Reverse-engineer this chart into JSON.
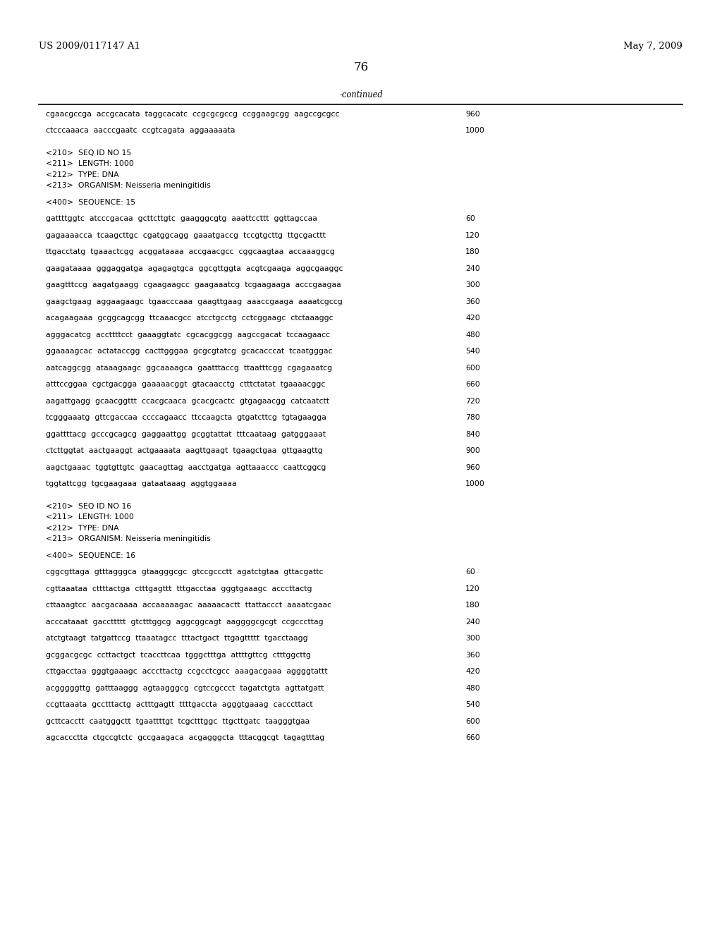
{
  "header_left": "US 2009/0117147 A1",
  "header_right": "May 7, 2009",
  "page_number": "76",
  "continued_label": "-continued",
  "background_color": "#ffffff",
  "text_color": "#000000",
  "font_size_header": 9.5,
  "font_size_body": 7.8,
  "font_size_page": 12,
  "lines": [
    {
      "text": "cgaacgccga  accgcacata  taggcacatc  ccgcgcgccg  ccggaagcgg  aagccgcgcc",
      "number": "960",
      "type": "seq"
    },
    {
      "text": "",
      "number": "",
      "type": "blank"
    },
    {
      "text": "ctcccaaaca  aacccgaatc  ccgtcagata  aggaaaaata",
      "number": "1000",
      "type": "seq"
    },
    {
      "text": "",
      "number": "",
      "type": "blank"
    },
    {
      "text": "",
      "number": "",
      "type": "blank"
    },
    {
      "text": "<210>  SEQ ID NO 15",
      "number": "",
      "type": "meta"
    },
    {
      "text": "<211>  LENGTH: 1000",
      "number": "",
      "type": "meta"
    },
    {
      "text": "<212>  TYPE: DNA",
      "number": "",
      "type": "meta"
    },
    {
      "text": "<213>  ORGANISM: Neisseria meningitidis",
      "number": "",
      "type": "meta"
    },
    {
      "text": "",
      "number": "",
      "type": "blank"
    },
    {
      "text": "<400>  SEQUENCE: 15",
      "number": "",
      "type": "meta"
    },
    {
      "text": "",
      "number": "",
      "type": "blank"
    },
    {
      "text": "gattttggtc  atcccgacaa  gcttcttgtc  gaagggcgtg  aaattccttt  ggttagccaa",
      "number": "60",
      "type": "seq"
    },
    {
      "text": "",
      "number": "",
      "type": "blank"
    },
    {
      "text": "gagaaaacca  tcaagcttgc  cgatggcagg  gaaatgaccg  tccgtgcttg  ttgcgacttt",
      "number": "120",
      "type": "seq"
    },
    {
      "text": "",
      "number": "",
      "type": "blank"
    },
    {
      "text": "ttgacctatg  tgaaactcgg  acggataaaa  accgaacgcc  cggcaagtaa  accaaaggcg",
      "number": "180",
      "type": "seq"
    },
    {
      "text": "",
      "number": "",
      "type": "blank"
    },
    {
      "text": "gaagataaaa  gggaggatga  agagagtgca  ggcgttggta  acgtcgaaga  aggcgaaggc",
      "number": "240",
      "type": "seq"
    },
    {
      "text": "",
      "number": "",
      "type": "blank"
    },
    {
      "text": "gaagtttccg  aagatgaagg  cgaagaagcc  gaagaaatcg  tcgaagaaga  acccgaagaa",
      "number": "300",
      "type": "seq"
    },
    {
      "text": "",
      "number": "",
      "type": "blank"
    },
    {
      "text": "gaagctgaag  aggaagaagc  tgaacccaaa  gaagttgaag  aaaccgaaga  aaaatcgccg",
      "number": "360",
      "type": "seq"
    },
    {
      "text": "",
      "number": "",
      "type": "blank"
    },
    {
      "text": "acagaagaaa  gcggcagcgg  ttcaaacgcc  atcctgcctg  cctcggaagc  ctctaaaggc",
      "number": "420",
      "type": "seq"
    },
    {
      "text": "",
      "number": "",
      "type": "blank"
    },
    {
      "text": "agggacatcg  accttttcct  gaaaggtatc  cgcacggcgg  aagccgacat  tccaagaacc",
      "number": "480",
      "type": "seq"
    },
    {
      "text": "",
      "number": "",
      "type": "blank"
    },
    {
      "text": "ggaaaagcac  actataccgg  cacttgggaa  gcgcgtatcg  gcacacccat  tcaatgggac",
      "number": "540",
      "type": "seq"
    },
    {
      "text": "",
      "number": "",
      "type": "blank"
    },
    {
      "text": "aatcaggcgg  ataaagaagc  ggcaaaagca  gaatttaccg  ttaatttcgg  cgagaaatcg",
      "number": "600",
      "type": "seq"
    },
    {
      "text": "",
      "number": "",
      "type": "blank"
    },
    {
      "text": "atttccggaa  cgctgacgga  gaaaaacggt  gtacaacctg  ctttctatat  tgaaaacggc",
      "number": "660",
      "type": "seq"
    },
    {
      "text": "",
      "number": "",
      "type": "blank"
    },
    {
      "text": "aagattgagg  gcaacggttt  ccacgcaaca  gcacgcactc  gtgagaacgg  catcaatctt",
      "number": "720",
      "type": "seq"
    },
    {
      "text": "",
      "number": "",
      "type": "blank"
    },
    {
      "text": "tcgggaaatg  gttcgaccaa  ccccagaacc  ttccaagcta  gtgatcttcg  tgtagaagga",
      "number": "780",
      "type": "seq"
    },
    {
      "text": "",
      "number": "",
      "type": "blank"
    },
    {
      "text": "ggattttacg  gcccgcagcg  gaggaattgg  gcggtattat  tttcaataag  gatgggaaat",
      "number": "840",
      "type": "seq"
    },
    {
      "text": "",
      "number": "",
      "type": "blank"
    },
    {
      "text": "ctcttggtat  aactgaaggt  actgaaaata  aagttgaagt  tgaagctgaa  gttgaagttg",
      "number": "900",
      "type": "seq"
    },
    {
      "text": "",
      "number": "",
      "type": "blank"
    },
    {
      "text": "aagctgaaac  tggtgttgtc  gaacagttag  aacctgatga  agttaaaccc  caattcggcg",
      "number": "960",
      "type": "seq"
    },
    {
      "text": "",
      "number": "",
      "type": "blank"
    },
    {
      "text": "tggtattcgg  tgcgaagaaa  gataataaag  aggtggaaaa",
      "number": "1000",
      "type": "seq"
    },
    {
      "text": "",
      "number": "",
      "type": "blank"
    },
    {
      "text": "",
      "number": "",
      "type": "blank"
    },
    {
      "text": "<210>  SEQ ID NO 16",
      "number": "",
      "type": "meta"
    },
    {
      "text": "<211>  LENGTH: 1000",
      "number": "",
      "type": "meta"
    },
    {
      "text": "<212>  TYPE: DNA",
      "number": "",
      "type": "meta"
    },
    {
      "text": "<213>  ORGANISM: Neisseria meningitidis",
      "number": "",
      "type": "meta"
    },
    {
      "text": "",
      "number": "",
      "type": "blank"
    },
    {
      "text": "<400>  SEQUENCE: 16",
      "number": "",
      "type": "meta"
    },
    {
      "text": "",
      "number": "",
      "type": "blank"
    },
    {
      "text": "cggcgttaga  gtttagggca  gtaagggcgc  gtccgccctt  agatctgtaa  gttacgattc",
      "number": "60",
      "type": "seq"
    },
    {
      "text": "",
      "number": "",
      "type": "blank"
    },
    {
      "text": "cgttaaataa  cttttactga  ctttgagttt  tttgacctaa  gggtgaaagc  acccttactg",
      "number": "120",
      "type": "seq"
    },
    {
      "text": "",
      "number": "",
      "type": "blank"
    },
    {
      "text": "cttaaagtcc  aacgacaaaa  accaaaaagac  aaaaacactt  ttattaccct  aaaatcgaac",
      "number": "180",
      "type": "seq"
    },
    {
      "text": "",
      "number": "",
      "type": "blank"
    },
    {
      "text": "acccataaat  gaccttttt  gtctttggcg  aggcggcagt  aaggggcgcgt  ccgcccttag",
      "number": "240",
      "type": "seq"
    },
    {
      "text": "",
      "number": "",
      "type": "blank"
    },
    {
      "text": "atctgtaagt  tatgattccg  ttaaatagcc  tttactgact  ttgagttttt  tgacctaagg",
      "number": "300",
      "type": "seq"
    },
    {
      "text": "",
      "number": "",
      "type": "blank"
    },
    {
      "text": "gcggacgcgc  ccttactgct  tcaccttcaa  tgggctttga  attttgttcg  ctttggcttg",
      "number": "360",
      "type": "seq"
    },
    {
      "text": "",
      "number": "",
      "type": "blank"
    },
    {
      "text": "cttgacctaa  gggtgaaagc  acccttactg  ccgcctcgcc  aaagacgaaa  aggggtattt",
      "number": "420",
      "type": "seq"
    },
    {
      "text": "",
      "number": "",
      "type": "blank"
    },
    {
      "text": "acgggggttg  gatttaaggg  agtaagggcg  cgtccgccct  tagatctgta  agttatgatt",
      "number": "480",
      "type": "seq"
    },
    {
      "text": "",
      "number": "",
      "type": "blank"
    },
    {
      "text": "ccgttaaata  gcctttactg  actttgagtt  ttttgaccta  agggtgaaag  cacccttact",
      "number": "540",
      "type": "seq"
    },
    {
      "text": "",
      "number": "",
      "type": "blank"
    },
    {
      "text": "gcttcacctt  caatgggctt  tgaattttgt  tcgctttggc  ttgcttgatc  taagggtgaa",
      "number": "600",
      "type": "seq"
    },
    {
      "text": "",
      "number": "",
      "type": "blank"
    },
    {
      "text": "agcaccctta  ctgccgtctc  gccgaagaca  acgagggcta  tttacggcgt  tagagtttag",
      "number": "660",
      "type": "seq"
    }
  ]
}
